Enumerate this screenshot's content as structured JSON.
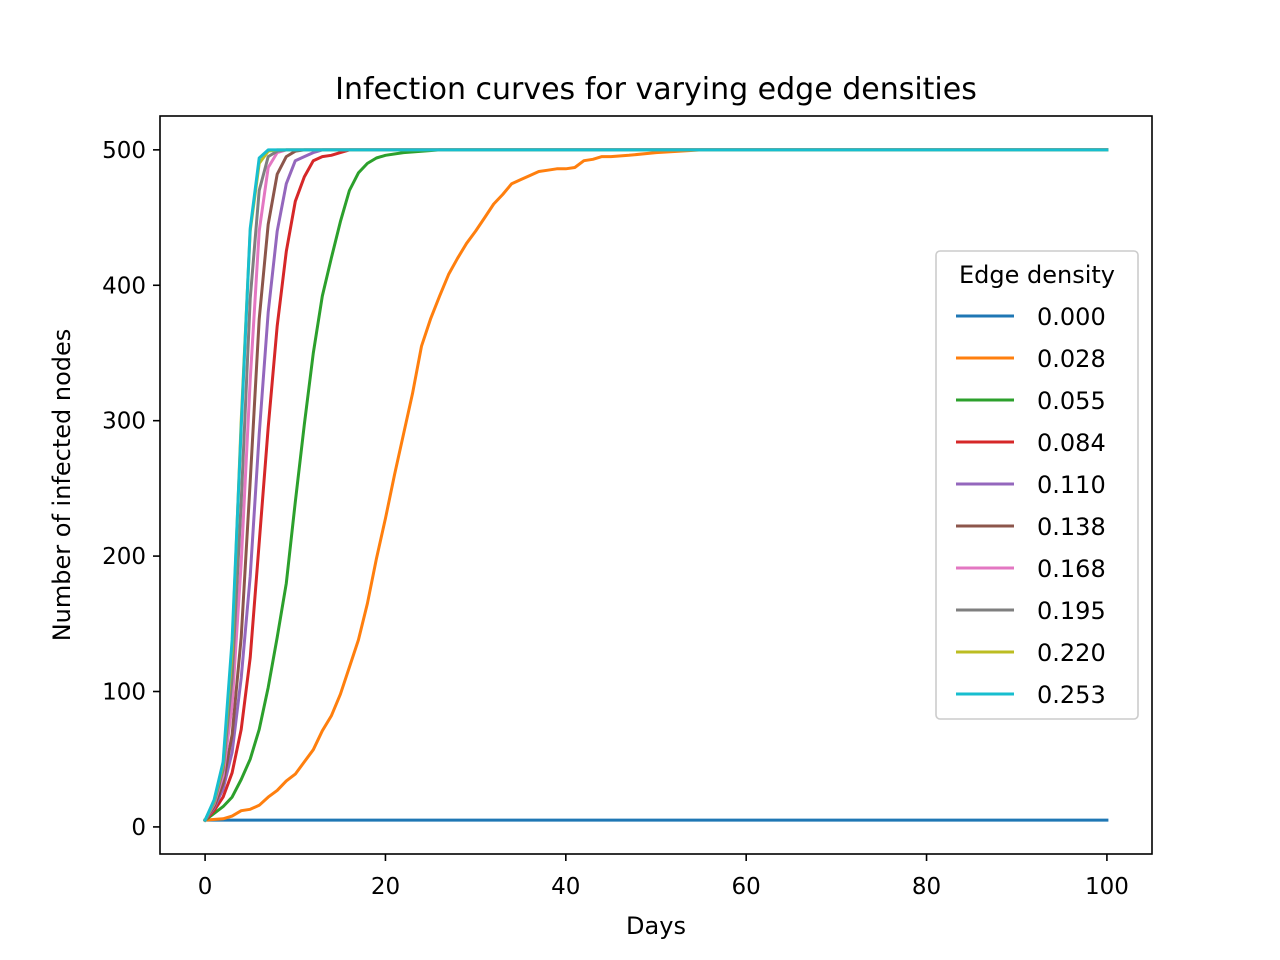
{
  "chart_data": {
    "type": "line",
    "title": "Infection curves for varying edge densities",
    "xlabel": "Days",
    "ylabel": "Number of infected nodes",
    "xlim": [
      -5,
      105
    ],
    "ylim": [
      -20,
      525
    ],
    "xticks": [
      0,
      20,
      40,
      60,
      80,
      100
    ],
    "yticks": [
      0,
      100,
      200,
      300,
      400,
      500
    ],
    "grid": false,
    "legend": {
      "title": "Edge density",
      "placement": "center-right"
    },
    "series": [
      {
        "name": "0.000",
        "color": "#1f77b4",
        "points": [
          [
            0,
            5
          ],
          [
            100,
            5
          ]
        ]
      },
      {
        "name": "0.028",
        "color": "#ff7f0e",
        "points": [
          [
            0,
            5
          ],
          [
            2,
            6
          ],
          [
            3,
            8
          ],
          [
            4,
            12
          ],
          [
            5,
            13
          ],
          [
            6,
            16
          ],
          [
            7,
            22
          ],
          [
            8,
            27
          ],
          [
            9,
            34
          ],
          [
            10,
            39
          ],
          [
            11,
            48
          ],
          [
            12,
            57
          ],
          [
            13,
            71
          ],
          [
            14,
            82
          ],
          [
            15,
            98
          ],
          [
            16,
            118
          ],
          [
            17,
            138
          ],
          [
            18,
            165
          ],
          [
            19,
            198
          ],
          [
            20,
            228
          ],
          [
            21,
            260
          ],
          [
            22,
            290
          ],
          [
            23,
            320
          ],
          [
            24,
            355
          ],
          [
            25,
            375
          ],
          [
            26,
            392
          ],
          [
            27,
            408
          ],
          [
            28,
            420
          ],
          [
            29,
            431
          ],
          [
            30,
            440
          ],
          [
            31,
            450
          ],
          [
            32,
            460
          ],
          [
            33,
            467
          ],
          [
            34,
            475
          ],
          [
            35,
            478
          ],
          [
            36,
            481
          ],
          [
            37,
            484
          ],
          [
            38,
            485
          ],
          [
            39,
            486
          ],
          [
            40,
            486
          ],
          [
            41,
            487
          ],
          [
            42,
            492
          ],
          [
            43,
            493
          ],
          [
            44,
            495
          ],
          [
            45,
            495
          ],
          [
            47,
            496
          ],
          [
            50,
            498
          ],
          [
            55,
            500
          ],
          [
            100,
            500
          ]
        ]
      },
      {
        "name": "0.055",
        "color": "#2ca02c",
        "points": [
          [
            0,
            5
          ],
          [
            1,
            10
          ],
          [
            2,
            15
          ],
          [
            3,
            22
          ],
          [
            4,
            35
          ],
          [
            5,
            50
          ],
          [
            6,
            72
          ],
          [
            7,
            103
          ],
          [
            8,
            140
          ],
          [
            9,
            180
          ],
          [
            10,
            240
          ],
          [
            11,
            297
          ],
          [
            12,
            350
          ],
          [
            13,
            392
          ],
          [
            14,
            420
          ],
          [
            15,
            447
          ],
          [
            16,
            470
          ],
          [
            17,
            483
          ],
          [
            18,
            490
          ],
          [
            19,
            494
          ],
          [
            20,
            496
          ],
          [
            22,
            498
          ],
          [
            24,
            499
          ],
          [
            26,
            500
          ],
          [
            100,
            500
          ]
        ]
      },
      {
        "name": "0.084",
        "color": "#d62728",
        "points": [
          [
            0,
            5
          ],
          [
            1,
            12
          ],
          [
            2,
            22
          ],
          [
            3,
            40
          ],
          [
            4,
            72
          ],
          [
            5,
            125
          ],
          [
            6,
            210
          ],
          [
            7,
            295
          ],
          [
            8,
            370
          ],
          [
            9,
            425
          ],
          [
            10,
            462
          ],
          [
            11,
            480
          ],
          [
            12,
            492
          ],
          [
            13,
            495
          ],
          [
            14,
            496
          ],
          [
            15,
            498
          ],
          [
            16,
            500
          ],
          [
            100,
            500
          ]
        ]
      },
      {
        "name": "0.110",
        "color": "#9467bd",
        "points": [
          [
            0,
            5
          ],
          [
            1,
            14
          ],
          [
            2,
            28
          ],
          [
            3,
            55
          ],
          [
            4,
            110
          ],
          [
            5,
            185
          ],
          [
            6,
            290
          ],
          [
            7,
            380
          ],
          [
            8,
            440
          ],
          [
            9,
            475
          ],
          [
            10,
            492
          ],
          [
            11,
            495
          ],
          [
            12,
            498
          ],
          [
            13,
            500
          ],
          [
            100,
            500
          ]
        ]
      },
      {
        "name": "0.138",
        "color": "#8c564b",
        "points": [
          [
            0,
            5
          ],
          [
            1,
            15
          ],
          [
            2,
            32
          ],
          [
            3,
            68
          ],
          [
            4,
            140
          ],
          [
            5,
            255
          ],
          [
            6,
            375
          ],
          [
            7,
            445
          ],
          [
            8,
            482
          ],
          [
            9,
            495
          ],
          [
            10,
            499
          ],
          [
            11,
            500
          ],
          [
            100,
            500
          ]
        ]
      },
      {
        "name": "0.168",
        "color": "#e377c2",
        "points": [
          [
            0,
            5
          ],
          [
            1,
            17
          ],
          [
            2,
            38
          ],
          [
            3,
            90
          ],
          [
            4,
            195
          ],
          [
            5,
            330
          ],
          [
            6,
            440
          ],
          [
            7,
            487
          ],
          [
            8,
            498
          ],
          [
            9,
            500
          ],
          [
            100,
            500
          ]
        ]
      },
      {
        "name": "0.195",
        "color": "#7f7f7f",
        "points": [
          [
            0,
            5
          ],
          [
            1,
            18
          ],
          [
            2,
            42
          ],
          [
            3,
            110
          ],
          [
            4,
            240
          ],
          [
            5,
            390
          ],
          [
            6,
            470
          ],
          [
            7,
            495
          ],
          [
            8,
            499
          ],
          [
            9,
            500
          ],
          [
            100,
            500
          ]
        ]
      },
      {
        "name": "0.220",
        "color": "#bcbd22",
        "points": [
          [
            0,
            5
          ],
          [
            1,
            19
          ],
          [
            2,
            46
          ],
          [
            3,
            130
          ],
          [
            4,
            300
          ],
          [
            5,
            440
          ],
          [
            6,
            490
          ],
          [
            7,
            499
          ],
          [
            8,
            500
          ],
          [
            100,
            500
          ]
        ]
      },
      {
        "name": "0.253",
        "color": "#17becf",
        "points": [
          [
            0,
            5
          ],
          [
            1,
            20
          ],
          [
            2,
            48
          ],
          [
            3,
            138
          ],
          [
            4,
            295
          ],
          [
            5,
            442
          ],
          [
            6,
            494
          ],
          [
            7,
            500
          ],
          [
            100,
            500
          ]
        ]
      }
    ]
  }
}
